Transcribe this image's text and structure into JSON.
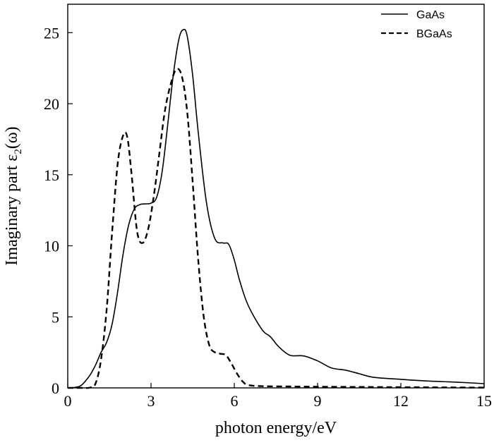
{
  "chart_data": {
    "type": "line",
    "xlabel": "photon energy/eV",
    "ylabel": "Imaginary part ε",
    "ylabel_sub": "2",
    "ylabel_suffix": "(ω)",
    "xlim": [
      0,
      15
    ],
    "ylim": [
      0,
      27
    ],
    "xticks": [
      0,
      3,
      6,
      9,
      12,
      15
    ],
    "yticks": [
      0,
      5,
      10,
      15,
      20,
      25
    ],
    "grid": false,
    "legend_position": "top-right",
    "series": [
      {
        "name": "GaAs",
        "style": "solid",
        "color": "#000000",
        "x": [
          0,
          0.3,
          0.5,
          0.8,
          1.0,
          1.2,
          1.4,
          1.6,
          1.8,
          2.0,
          2.2,
          2.4,
          2.6,
          2.8,
          3.0,
          3.2,
          3.4,
          3.6,
          3.8,
          4.0,
          4.15,
          4.3,
          4.5,
          4.7,
          5.0,
          5.3,
          5.6,
          5.8,
          6.0,
          6.2,
          6.5,
          7.0,
          7.3,
          7.6,
          8.0,
          8.5,
          9.0,
          9.5,
          10.0,
          10.5,
          11.0,
          12.0,
          13.0,
          14.0,
          15.0
        ],
        "y": [
          0,
          0.05,
          0.2,
          0.9,
          1.6,
          2.5,
          3.2,
          4.5,
          6.8,
          9.5,
          11.5,
          12.6,
          12.9,
          12.95,
          13.0,
          13.4,
          15.2,
          18.5,
          22.0,
          24.5,
          25.2,
          24.8,
          22.0,
          18.0,
          13.0,
          10.5,
          10.2,
          10.1,
          9.0,
          7.5,
          5.8,
          4.1,
          3.6,
          2.9,
          2.3,
          2.25,
          1.9,
          1.4,
          1.25,
          1.0,
          0.75,
          0.6,
          0.48,
          0.4,
          0.3
        ]
      },
      {
        "name": "BGaAs",
        "style": "dashed",
        "color": "#000000",
        "x": [
          0,
          0.5,
          0.8,
          1.0,
          1.2,
          1.4,
          1.6,
          1.8,
          2.0,
          2.15,
          2.3,
          2.5,
          2.7,
          2.9,
          3.1,
          3.3,
          3.5,
          3.7,
          3.9,
          4.1,
          4.3,
          4.5,
          4.7,
          4.9,
          5.1,
          5.3,
          5.5,
          5.7,
          5.9,
          6.1,
          6.3,
          6.5,
          7.0,
          8.0,
          9.0,
          10.0,
          11.0,
          12.0,
          13.0,
          14.0,
          15.0
        ],
        "y": [
          0,
          0,
          0.02,
          0.3,
          2.0,
          5.5,
          11.0,
          15.8,
          17.8,
          17.6,
          15.0,
          11.0,
          10.2,
          11.2,
          13.5,
          16.5,
          19.5,
          21.3,
          22.4,
          22.0,
          19.5,
          14.5,
          9.0,
          5.0,
          3.0,
          2.5,
          2.4,
          2.3,
          1.7,
          1.0,
          0.45,
          0.2,
          0.12,
          0.1,
          0.08,
          0.07,
          0.06,
          0.05,
          0.04,
          0.03,
          0.02
        ]
      }
    ]
  }
}
